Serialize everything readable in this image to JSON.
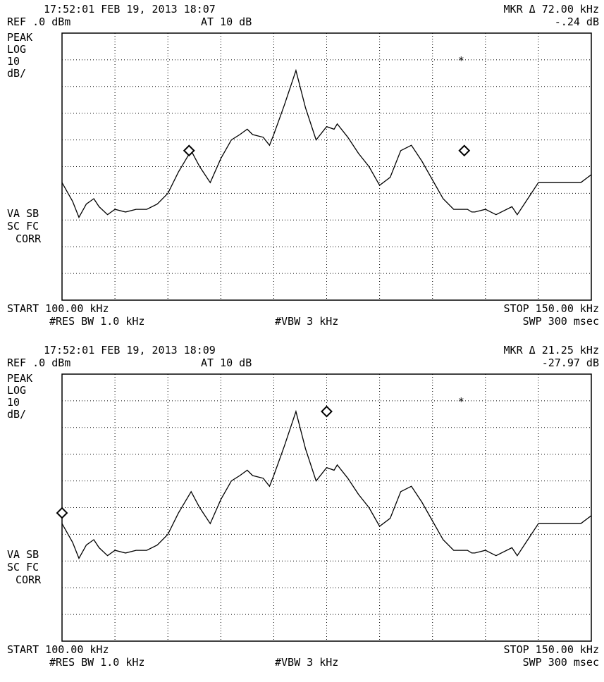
{
  "panels": [
    {
      "header": {
        "timestamp": "17:52:01 FEB 19, 2013 18:07",
        "ref": "REF .0 dBm",
        "atten": "AT 10 dB",
        "marker_label": "MKR Δ 72.00 kHz",
        "marker_value": "-.24 dB"
      },
      "side_labels": {
        "peak": "PEAK",
        "log": "LOG",
        "scale_num": "10",
        "scale_unit": "dB/",
        "va_sb": "VA SB",
        "sc_fc": "SC FC",
        "corr": "CORR"
      },
      "footer": {
        "start": "START 100.00 kHz",
        "stop": "STOP 150.00 kHz",
        "res_bw": "#RES BW 1.0 kHz",
        "vbw": "#VBW 3 kHz",
        "sweep": "SWP 300 msec"
      },
      "marker_star_symbol": "*"
    },
    {
      "header": {
        "timestamp": "17:52:01 FEB 19, 2013 18:09",
        "ref": "REF .0 dBm",
        "atten": "AT 10 dB",
        "marker_label": "MKR Δ 21.25 kHz",
        "marker_value": "-27.97 dB"
      },
      "side_labels": {
        "peak": "PEAK",
        "log": "LOG",
        "scale_num": "10",
        "scale_unit": "dB/",
        "va_sb": "VA SB",
        "sc_fc": "SC FC",
        "corr": "CORR"
      },
      "footer": {
        "start": "START 100.00 kHz",
        "stop": "STOP 150.00 kHz",
        "res_bw": "#RES BW 1.0 kHz",
        "vbw": "#VBW 3 kHz",
        "sweep": "SWP 300 msec"
      },
      "marker_star_symbol": "*"
    }
  ],
  "chart_data": [
    {
      "type": "line",
      "xlim": [
        100,
        150
      ],
      "ylim": [
        -100,
        0
      ],
      "x_unit": "kHz",
      "y_unit": "dBm",
      "grid": true,
      "series": [
        {
          "x": [
            100,
            101,
            101.6,
            102.3,
            103,
            103.5,
            104.3,
            105,
            106,
            107,
            108,
            109,
            110,
            111,
            112.2,
            113,
            114,
            115,
            116,
            116.8,
            117.5,
            118,
            119,
            119.6,
            120,
            121,
            122.1,
            123,
            124,
            125,
            125.7,
            126,
            127,
            128,
            129,
            130,
            131,
            132,
            133,
            134,
            135,
            136,
            137,
            137.6,
            138.3,
            138.7,
            139,
            140,
            141,
            142.5,
            143,
            144,
            145,
            146,
            147,
            148,
            149,
            150
          ],
          "y": [
            -56,
            -63,
            -69,
            -64,
            -62,
            -65,
            -68,
            -66,
            -67,
            -66,
            -66,
            -64,
            -60,
            -52,
            -44,
            -50,
            -56,
            -47,
            -40,
            -38,
            -36,
            -38,
            -39,
            -42,
            -38,
            -27,
            -14,
            -28,
            -40,
            -35,
            -36,
            -34,
            -39,
            -45,
            -50,
            -57,
            -54,
            -44,
            -42,
            -48,
            -55,
            -62,
            -66,
            -66,
            -66,
            -67,
            -67,
            -66,
            -68,
            -65,
            -68,
            -62,
            -56,
            -56,
            -56,
            -56,
            -56,
            -53
          ]
        }
      ],
      "markers": [
        {
          "type": "diamond",
          "x": 112.0,
          "y": -44
        },
        {
          "type": "diamond",
          "x": 138.0,
          "y": -44
        },
        {
          "type": "star",
          "x": 137.7,
          "y": -10
        }
      ]
    },
    {
      "type": "line",
      "xlim": [
        100,
        150
      ],
      "ylim": [
        -100,
        0
      ],
      "x_unit": "kHz",
      "y_unit": "dBm",
      "grid": true,
      "series": [
        {
          "x": [
            100,
            101,
            101.6,
            102.3,
            103,
            103.5,
            104.3,
            105,
            106,
            107,
            108,
            109,
            110,
            111,
            112.2,
            113,
            114,
            115,
            116,
            116.8,
            117.5,
            118,
            119,
            119.6,
            120,
            121,
            122.1,
            123,
            124,
            125,
            125.7,
            126,
            127,
            128,
            129,
            130,
            131,
            132,
            133,
            134,
            135,
            136,
            137,
            137.6,
            138.3,
            138.7,
            139,
            140,
            141,
            142.5,
            143,
            144,
            145,
            146,
            147,
            148,
            149,
            150
          ],
          "y": [
            -56,
            -63,
            -69,
            -64,
            -62,
            -65,
            -68,
            -66,
            -67,
            -66,
            -66,
            -64,
            -60,
            -52,
            -44,
            -50,
            -56,
            -47,
            -40,
            -38,
            -36,
            -38,
            -39,
            -42,
            -38,
            -27,
            -14,
            -28,
            -40,
            -35,
            -36,
            -34,
            -39,
            -45,
            -50,
            -57,
            -54,
            -44,
            -42,
            -48,
            -55,
            -62,
            -66,
            -66,
            -66,
            -67,
            -67,
            -66,
            -68,
            -65,
            -68,
            -62,
            -56,
            -56,
            -56,
            -56,
            -56,
            -53
          ]
        }
      ],
      "markers": [
        {
          "type": "diamond",
          "x": 125.0,
          "y": -14
        },
        {
          "type": "diamond",
          "x": 100.0,
          "y": -52
        },
        {
          "type": "star",
          "x": 137.7,
          "y": -10
        }
      ]
    }
  ]
}
